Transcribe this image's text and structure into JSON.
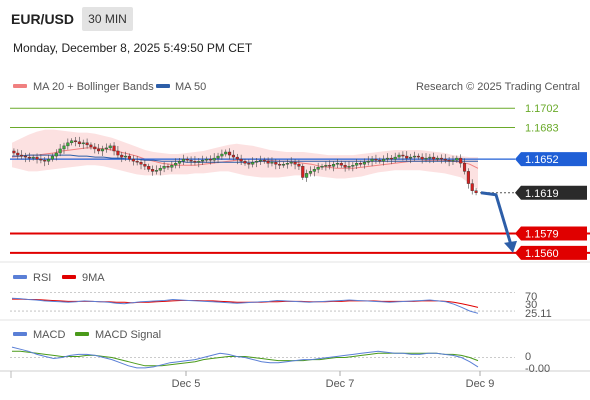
{
  "header": {
    "symbol": "EUR/USD",
    "timeframe": "30 MIN",
    "datetime": "Monday, December 8, 2025 5:49:50 PM CET"
  },
  "legend": {
    "ma20": "MA 20 + Bollinger Bands",
    "ma50": "MA 50",
    "research": "Research © 2025 Trading Central",
    "ma20_color": "#f08080",
    "ma50_color": "#2d5ea8"
  },
  "levels": {
    "resistance_color": "#6aaa2a",
    "support_color": "#e00000",
    "current_color": "#2a2a2a",
    "pivot_color": "#1f5fd6",
    "items": [
      {
        "label": "1.1702",
        "value": 1.1702,
        "kind": "resistance"
      },
      {
        "label": "1.1683",
        "value": 1.1683,
        "kind": "resistance"
      },
      {
        "label": "1.1652",
        "value": 1.1652,
        "kind": "pivot"
      },
      {
        "label": "1.1619",
        "value": 1.1619,
        "kind": "current"
      },
      {
        "label": "1.1579",
        "value": 1.1579,
        "kind": "support"
      },
      {
        "label": "1.1560",
        "value": 1.156,
        "kind": "support"
      }
    ]
  },
  "rsi": {
    "label": "RSI",
    "ma_label": "9MA",
    "level_label": "70",
    "level_label_2": "30",
    "value_label": "25.11",
    "color": "#5a7fd6",
    "ma_color": "#e00000"
  },
  "macd": {
    "label": "MACD",
    "signal_label": "MACD Signal",
    "zero_label": "0",
    "value_label": "-0.00",
    "color": "#5a7fd6",
    "signal_color": "#4a9a1a"
  },
  "xaxis": {
    "ticks": [
      "Dec 5",
      "Dec 7",
      "Dec 9"
    ]
  },
  "chart_data": {
    "type": "candlestick",
    "symbol": "EUR/USD",
    "interval": "30 MIN",
    "ylim": [
      1.1553,
      1.1712
    ],
    "x_ticks": [
      "Dec 5",
      "Dec 7",
      "Dec 9"
    ],
    "close_series": [
      1.1658,
      1.1656,
      1.1655,
      1.1654,
      1.1653,
      1.1654,
      1.1652,
      1.1651,
      1.165,
      1.1652,
      1.1655,
      1.1658,
      1.1662,
      1.1665,
      1.1668,
      1.167,
      1.1669,
      1.1667,
      1.1668,
      1.1666,
      1.1664,
      1.1662,
      1.166,
      1.1662,
      1.1663,
      1.1665,
      1.166,
      1.1656,
      1.1654,
      1.1655,
      1.1652,
      1.165,
      1.1649,
      1.1647,
      1.1645,
      1.1642,
      1.164,
      1.1641,
      1.1643,
      1.1645,
      1.1644,
      1.1646,
      1.1648,
      1.165,
      1.1652,
      1.1651,
      1.165,
      1.1649,
      1.165,
      1.1651,
      1.1652,
      1.1651,
      1.1653,
      1.1655,
      1.1657,
      1.1659,
      1.1656,
      1.1654,
      1.1652,
      1.165,
      1.1648,
      1.1647,
      1.1649,
      1.165,
      1.1651,
      1.165,
      1.1648,
      1.1649,
      1.1647,
      1.1646,
      1.1647,
      1.1648,
      1.1649,
      1.1647,
      1.1645,
      1.1634,
      1.1638,
      1.164,
      1.1642,
      1.1644,
      1.1645,
      1.1646,
      1.1645,
      1.1647,
      1.1648,
      1.1646,
      1.1644,
      1.1645,
      1.1646,
      1.1648,
      1.1647,
      1.1649,
      1.165,
      1.1652,
      1.1651,
      1.165,
      1.1652,
      1.1653,
      1.1652,
      1.1654,
      1.1656,
      1.1655,
      1.1653,
      1.1654,
      1.1655,
      1.1654,
      1.1652,
      1.1653,
      1.1654,
      1.1652,
      1.1653,
      1.1652,
      1.1651,
      1.165,
      1.1651,
      1.1653,
      1.1648,
      1.164,
      1.1628,
      1.1621,
      1.1619
    ],
    "ma20_series": [
      1.1654,
      1.1655,
      1.1656,
      1.1656,
      1.1657,
      1.1658,
      1.166,
      1.1661,
      1.1662,
      1.1663,
      1.1663,
      1.1662,
      1.1661,
      1.1659,
      1.1657,
      1.1655,
      1.1652,
      1.165,
      1.1648,
      1.1647,
      1.1646,
      1.1646,
      1.1646,
      1.1647,
      1.1648,
      1.1649,
      1.165,
      1.1651,
      1.1652,
      1.1652,
      1.1652,
      1.1651,
      1.165,
      1.165,
      1.1649,
      1.1648,
      1.1647,
      1.1645,
      1.1644,
      1.1643,
      1.1643,
      1.1643,
      1.1644,
      1.1645,
      1.1646,
      1.1647,
      1.1648,
      1.1649,
      1.165,
      1.165,
      1.1651,
      1.1651,
      1.1651,
      1.165,
      1.1649,
      1.1647,
      1.1643
    ],
    "ma50_series": [
      1.1655,
      1.1655,
      1.1656,
      1.1656,
      1.1656,
      1.1656,
      1.1656,
      1.1656,
      1.1655,
      1.1655,
      1.1654,
      1.1654,
      1.1653,
      1.1653,
      1.1652,
      1.1652,
      1.1651,
      1.1651,
      1.165,
      1.165,
      1.165,
      1.1649,
      1.1649,
      1.1649,
      1.1649,
      1.1649,
      1.1649,
      1.1649,
      1.1649,
      1.1649,
      1.165,
      1.165,
      1.165,
      1.165,
      1.165,
      1.165,
      1.165,
      1.165,
      1.165,
      1.165,
      1.165,
      1.165,
      1.165,
      1.165,
      1.165,
      1.165,
      1.165,
      1.165,
      1.165,
      1.165,
      1.165,
      1.165,
      1.165,
      1.165,
      1.165,
      1.165,
      1.165
    ],
    "bollinger_upper": [
      1.1668,
      1.1672,
      1.1676,
      1.1679,
      1.1681,
      1.1681,
      1.168,
      1.1679,
      1.1678,
      1.1678,
      1.1677,
      1.1675,
      1.1673,
      1.167,
      1.1667,
      1.1664,
      1.1661,
      1.1659,
      1.1658,
      1.1657,
      1.1657,
      1.1658,
      1.1659,
      1.166,
      1.1662,
      1.1664,
      1.1666,
      1.1667,
      1.1666,
      1.1665,
      1.1663,
      1.1661,
      1.166,
      1.1659,
      1.1659,
      1.1659,
      1.1658,
      1.1657,
      1.1656,
      1.1656,
      1.1656,
      1.1656,
      1.1657,
      1.1658,
      1.1659,
      1.166,
      1.1661,
      1.1661,
      1.1661,
      1.1661,
      1.166,
      1.1659,
      1.1658,
      1.1656,
      1.1655,
      1.1654,
      1.1654
    ],
    "bollinger_lower": [
      1.1644,
      1.1642,
      1.164,
      1.164,
      1.1641,
      1.1642,
      1.1643,
      1.1644,
      1.1645,
      1.1646,
      1.1646,
      1.1645,
      1.1643,
      1.1641,
      1.1639,
      1.1637,
      1.1636,
      1.1636,
      1.1636,
      1.1637,
      1.1637,
      1.1637,
      1.1638,
      1.1638,
      1.1639,
      1.164,
      1.164,
      1.1638,
      1.1636,
      1.1635,
      1.1634,
      1.1634,
      1.1634,
      1.1635,
      1.1636,
      1.1636,
      1.1636,
      1.1635,
      1.1634,
      1.1633,
      1.1633,
      1.1634,
      1.1635,
      1.1637,
      1.1639,
      1.164,
      1.1641,
      1.1641,
      1.1641,
      1.1641,
      1.164,
      1.1639,
      1.1638,
      1.1636,
      1.1634,
      1.1628,
      1.1622
    ],
    "projection": {
      "from": 1.1619,
      "to": 1.156
    },
    "rsi_series": [
      58,
      57,
      55,
      54,
      52,
      51,
      50,
      49,
      50,
      52,
      51,
      50,
      49,
      47,
      46,
      48,
      50,
      51,
      52,
      53,
      55,
      54,
      53,
      52,
      51,
      50,
      49,
      48,
      47,
      48,
      49,
      50,
      51,
      53,
      52,
      51,
      50,
      49,
      50,
      51,
      52,
      53,
      54,
      53,
      52,
      51,
      50,
      49,
      50,
      51,
      52,
      53,
      54,
      52,
      50,
      45,
      38,
      30,
      25.11
    ],
    "rsi_ma_series": [
      56,
      56,
      55,
      55,
      54,
      53,
      52,
      51,
      51,
      51,
      51,
      50,
      50,
      49,
      49,
      48,
      49,
      49,
      50,
      51,
      52,
      53,
      53,
      53,
      52,
      52,
      51,
      50,
      49,
      49,
      49,
      49,
      50,
      50,
      51,
      51,
      51,
      50,
      50,
      50,
      51,
      51,
      52,
      52,
      52,
      52,
      51,
      51,
      51,
      51,
      51,
      52,
      52,
      52,
      51,
      49,
      46,
      42,
      38
    ],
    "macd_series": [
      0.001,
      0.0008,
      0.0006,
      0.0003,
      0.0001,
      -0.0001,
      0.0,
      0.0002,
      0.0003,
      0.0003,
      0.0002,
      0.0,
      -0.0002,
      -0.0005,
      -0.0008,
      -0.001,
      -0.001,
      -0.0009,
      -0.0007,
      -0.0005,
      -0.0004,
      -0.0003,
      -0.0002,
      0.0,
      0.0002,
      0.0004,
      0.0003,
      0.0001,
      0.0,
      -0.0002,
      -0.0004,
      -0.0005,
      -0.0005,
      -0.0004,
      -0.0003,
      -0.0002,
      -0.0002,
      -0.0001,
      0.0,
      0.0001,
      0.0002,
      0.0003,
      0.0004,
      0.0005,
      0.0006,
      0.0005,
      0.0004,
      0.0004,
      0.0003,
      0.0003,
      0.0004,
      0.0004,
      0.0003,
      0.0002,
      0.0,
      -0.0004,
      -0.0009
    ],
    "macd_signal_series": [
      0.0006,
      0.0006,
      0.0005,
      0.0004,
      0.0003,
      0.0002,
      0.0001,
      0.0001,
      0.0001,
      0.0002,
      0.0002,
      0.0001,
      0.0,
      -0.0002,
      -0.0004,
      -0.0006,
      -0.0008,
      -0.0008,
      -0.0008,
      -0.0007,
      -0.0006,
      -0.0005,
      -0.0004,
      -0.0002,
      -0.0001,
      0.0,
      0.0001,
      0.0001,
      0.0001,
      0.0,
      -0.0001,
      -0.0002,
      -0.0003,
      -0.0003,
      -0.0003,
      -0.0003,
      -0.0002,
      -0.0002,
      -0.0001,
      0.0,
      0.0,
      0.0001,
      0.0002,
      0.0003,
      0.0004,
      0.0004,
      0.0004,
      0.0004,
      0.0004,
      0.0004,
      0.0004,
      0.0004,
      0.0003,
      0.0003,
      0.0002,
      0.0,
      -0.0003
    ]
  }
}
